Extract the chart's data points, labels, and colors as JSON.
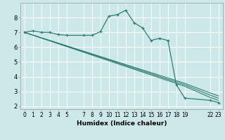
{
  "xlabel": "Humidex (Indice chaleur)",
  "bg_color": "#cce8e8",
  "grid_color": "#ffffff",
  "line_color": "#2e7d72",
  "xlim": [
    -0.5,
    23.5
  ],
  "ylim": [
    1.8,
    9.0
  ],
  "xtick_positions": [
    0,
    1,
    2,
    3,
    4,
    5,
    7,
    8,
    9,
    10,
    11,
    12,
    13,
    14,
    15,
    16,
    17,
    18,
    19,
    22,
    23
  ],
  "xtick_labels": [
    "0",
    "1",
    "2",
    "3",
    "4",
    "5",
    "7",
    "8",
    "9",
    "10",
    "11",
    "12",
    "13",
    "14",
    "15",
    "16",
    "17",
    "18",
    "19",
    "22",
    "23"
  ],
  "ytick_positions": [
    2,
    3,
    4,
    5,
    6,
    7,
    8
  ],
  "ytick_labels": [
    "2",
    "3",
    "4",
    "5",
    "6",
    "7",
    "8"
  ],
  "main_line_x": [
    0,
    1,
    2,
    3,
    4,
    5,
    7,
    8,
    9,
    10,
    11,
    12,
    13,
    14,
    15,
    16,
    17,
    18,
    19,
    22,
    23
  ],
  "main_line_y": [
    7.0,
    7.1,
    7.0,
    7.0,
    6.85,
    6.8,
    6.8,
    6.8,
    7.05,
    8.1,
    8.2,
    8.5,
    7.65,
    7.3,
    6.45,
    6.6,
    6.45,
    3.45,
    2.55,
    2.4,
    2.25
  ],
  "line1_x": [
    0,
    19,
    22,
    23
  ],
  "line1_y": [
    7.0,
    3.55,
    2.9,
    2.7
  ],
  "line2_x": [
    0,
    19,
    22,
    23
  ],
  "line2_y": [
    7.0,
    3.45,
    2.75,
    2.55
  ],
  "line3_x": [
    0,
    19,
    22,
    23
  ],
  "line3_y": [
    7.0,
    3.35,
    2.6,
    2.4
  ],
  "xlabel_fontsize": 6.5,
  "tick_fontsize": 5.5
}
